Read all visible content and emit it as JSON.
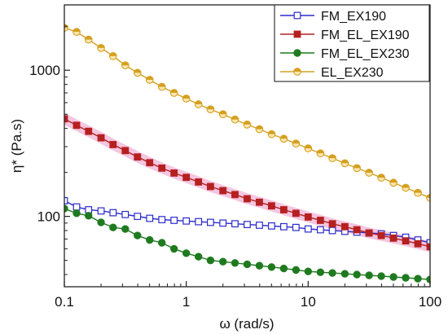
{
  "chart_data": {
    "type": "line",
    "xlabel": "ω (rad/s)",
    "ylabel": "η* (Pa.s)",
    "xscale": "log",
    "yscale": "log",
    "xlim": [
      0.1,
      100
    ],
    "ylim": [
      33,
      2800
    ],
    "x_ticks": [
      0.1,
      1,
      10,
      100
    ],
    "x_tick_labels": [
      "0.1",
      "1",
      "10",
      "100"
    ],
    "y_ticks": [
      100,
      1000
    ],
    "y_tick_labels": [
      "100",
      "1000"
    ],
    "legend_position": "top-right",
    "x": [
      0.1,
      0.126,
      0.158,
      0.2,
      0.251,
      0.316,
      0.398,
      0.501,
      0.631,
      0.794,
      1,
      1.26,
      1.58,
      2,
      2.51,
      3.16,
      3.98,
      5.01,
      6.31,
      7.94,
      10,
      12.6,
      15.8,
      20,
      25.1,
      31.6,
      39.8,
      50.1,
      63.1,
      79.4,
      100
    ],
    "series": [
      {
        "name": "FM_EX190",
        "color": "#2b2bcc",
        "marker": "open-square",
        "values": [
          128,
          116,
          111,
          109,
          106,
          103,
          100,
          97,
          95,
          94,
          93,
          92,
          91,
          90,
          89,
          88,
          87,
          86,
          85,
          84,
          82,
          81,
          80,
          79,
          78,
          77,
          76,
          74,
          72,
          69,
          66
        ]
      },
      {
        "name": "FM_EL_EX190",
        "color": "#b52020",
        "marker": "filled-square",
        "values": [
          465,
          420,
          382,
          345,
          310,
          282,
          255,
          233,
          214,
          198,
          185,
          172,
          160,
          150,
          141,
          132,
          125,
          118,
          111,
          105,
          99,
          94,
          89,
          85,
          81,
          77,
          74,
          71,
          68,
          65,
          62
        ]
      },
      {
        "name": "FM_EL_EX230",
        "color": "#1f7a1f",
        "marker": "filled-circle",
        "values": [
          113,
          105,
          101,
          91,
          84,
          82,
          74,
          69,
          66,
          60,
          56,
          53,
          50,
          49,
          48,
          47,
          46,
          45,
          44,
          43,
          42,
          41.5,
          41,
          40.5,
          40,
          39.5,
          39,
          38.5,
          38,
          37.5,
          37
        ]
      },
      {
        "name": "EL_EX230",
        "color": "#d4a020",
        "marker": "half-circle",
        "values": [
          1950,
          1830,
          1620,
          1420,
          1250,
          1080,
          960,
          860,
          770,
          700,
          640,
          585,
          540,
          500,
          460,
          425,
          395,
          365,
          340,
          315,
          292,
          270,
          250,
          231,
          214,
          199,
          184,
          170,
          157,
          145,
          134
        ]
      }
    ]
  }
}
